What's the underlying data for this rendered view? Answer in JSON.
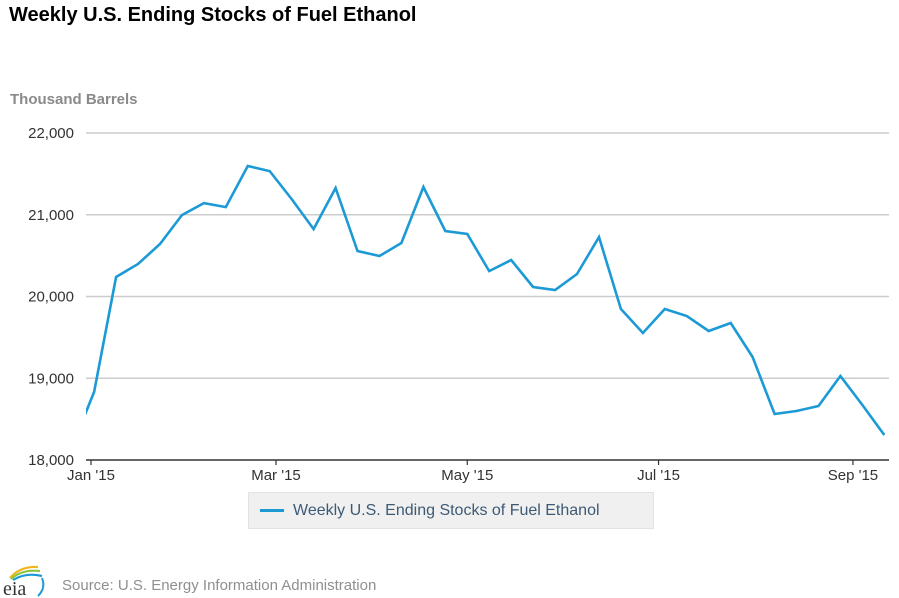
{
  "header": {
    "title": "Weekly U.S. Ending Stocks of Fuel Ethanol",
    "unit_label": "Thousand Barrels"
  },
  "footer": {
    "source": "Source: U.S. Energy Information Administration",
    "logo_text": "eia",
    "logo_icon": "eia-logo-icon"
  },
  "colors": {
    "series": "#1b9ad6",
    "grid": "#cccccc",
    "axis": "#333333"
  },
  "chart_data": {
    "type": "line",
    "title": "Weekly U.S. Ending Stocks of Fuel Ethanol",
    "xlabel": "",
    "ylabel": "Thousand Barrels",
    "ylim": [
      18000,
      22000
    ],
    "xlim": [
      "2014-12-29",
      "2015-09-15"
    ],
    "grid": true,
    "legend_position": "bottom-center",
    "y_ticks": [
      {
        "value": 18000,
        "label": "18,000"
      },
      {
        "value": 19000,
        "label": "19,000"
      },
      {
        "value": 20000,
        "label": "20,000"
      },
      {
        "value": 21000,
        "label": "21,000"
      },
      {
        "value": 22000,
        "label": "22,000"
      }
    ],
    "x_ticks": [
      {
        "date": "2015-01-01",
        "label": "Jan '15"
      },
      {
        "date": "2015-03-01",
        "label": "Mar '15"
      },
      {
        "date": "2015-05-01",
        "label": "May '15"
      },
      {
        "date": "2015-07-01",
        "label": "Jul '15"
      },
      {
        "date": "2015-09-01",
        "label": "Sep '15"
      }
    ],
    "series": [
      {
        "name": "Weekly U.S. Ending Stocks of Fuel Ethanol",
        "x": [
          "2014-12-26",
          "2015-01-02",
          "2015-01-09",
          "2015-01-16",
          "2015-01-23",
          "2015-01-30",
          "2015-02-06",
          "2015-02-13",
          "2015-02-20",
          "2015-02-27",
          "2015-03-06",
          "2015-03-13",
          "2015-03-20",
          "2015-03-27",
          "2015-04-03",
          "2015-04-10",
          "2015-04-17",
          "2015-04-24",
          "2015-05-01",
          "2015-05-08",
          "2015-05-15",
          "2015-05-22",
          "2015-05-29",
          "2015-06-05",
          "2015-06-12",
          "2015-06-19",
          "2015-06-26",
          "2015-07-03",
          "2015-07-10",
          "2015-07-17",
          "2015-07-24",
          "2015-07-31",
          "2015-08-07",
          "2015-08-14",
          "2015-08-21",
          "2015-08-28",
          "2015-09-04",
          "2015-09-11"
        ],
        "values": [
          18170,
          18832,
          20238,
          20397,
          20642,
          20996,
          21143,
          21094,
          21596,
          21534,
          21192,
          20825,
          21327,
          20556,
          20495,
          20654,
          21339,
          20801,
          20764,
          20311,
          20446,
          20116,
          20079,
          20275,
          20727,
          19847,
          19553,
          19847,
          19761,
          19578,
          19676,
          19260,
          18563,
          18599,
          18660,
          19027,
          18673,
          18306
        ]
      }
    ]
  }
}
